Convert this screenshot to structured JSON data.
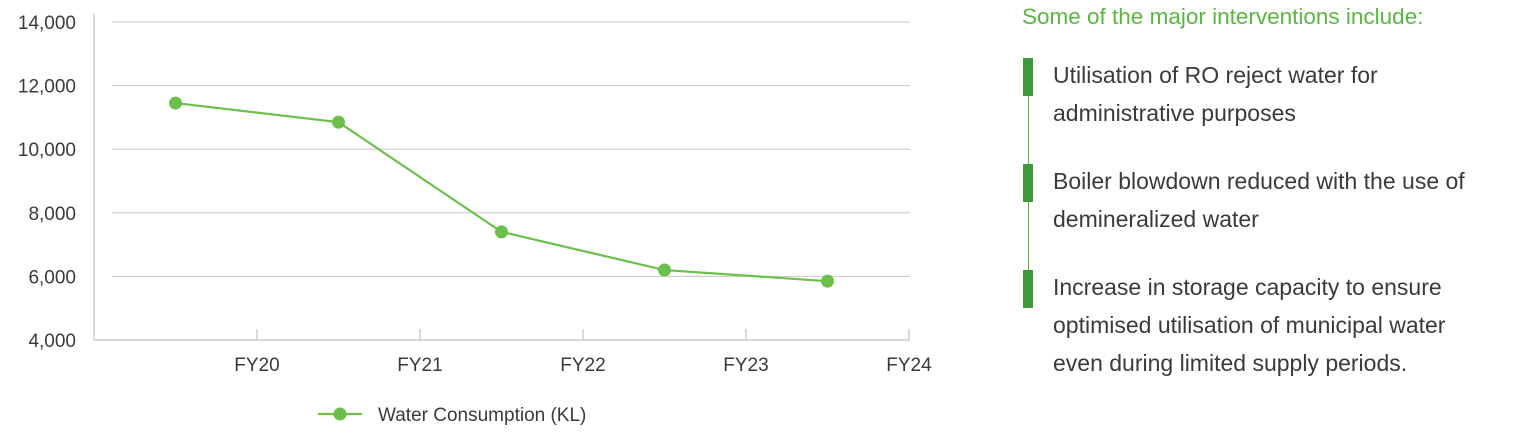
{
  "chart_data": {
    "type": "line",
    "title": "",
    "xlabel": "",
    "ylabel": "",
    "categories": [
      "FY20",
      "FY21",
      "FY22",
      "FY23",
      "FY24"
    ],
    "ylim": [
      4000,
      14000
    ],
    "yticks": [
      "4,000",
      "6,000",
      "8,000",
      "10,000",
      "12,000",
      "14,000"
    ],
    "grid": true,
    "legend_position": "bottom",
    "series": [
      {
        "name": "Water Consumption (KL)",
        "color": "#6cbf4a",
        "values": [
          11450,
          10850,
          7400,
          6200,
          5850
        ]
      }
    ]
  },
  "side_panel": {
    "title": "Some of the major interventions include:",
    "accent_color": "#5bb543",
    "items": [
      {
        "text": "Utilisation of RO reject water for\nadministrative purposes"
      },
      {
        "text": "Boiler blowdown reduced with the use of\ndemineralized water"
      },
      {
        "text": "Increase in storage capacity to ensure\noptimised utilisation of municipal water\neven during limited supply periods."
      }
    ]
  }
}
